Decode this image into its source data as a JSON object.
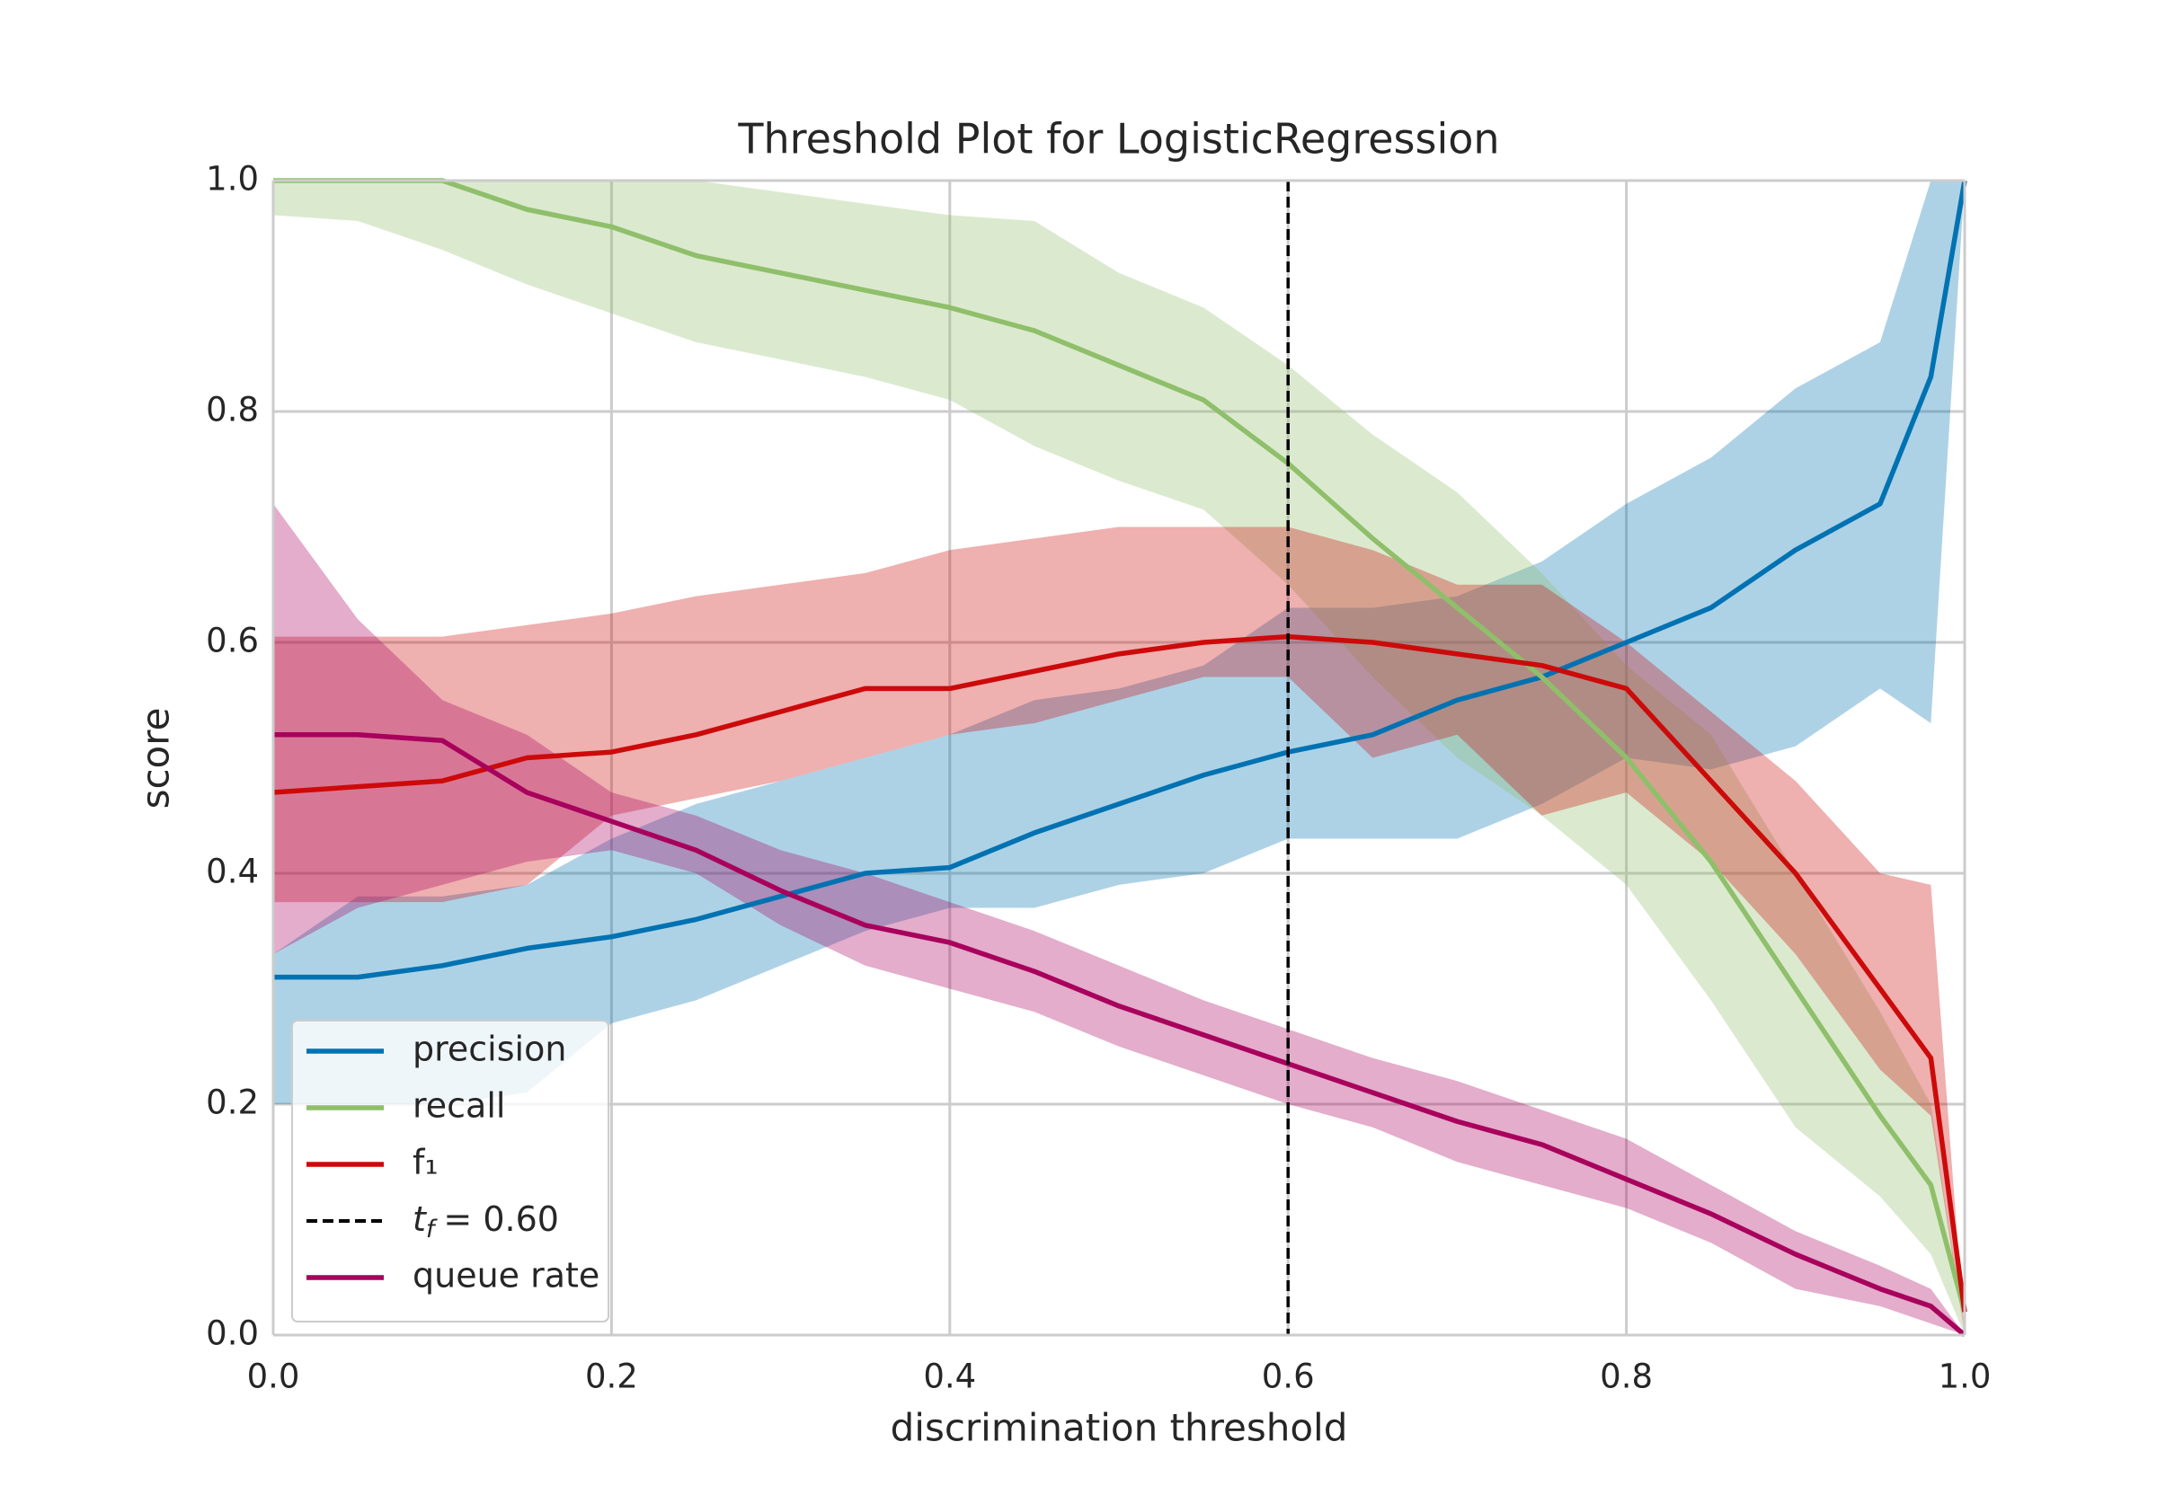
{
  "chart_data": {
    "type": "line",
    "title": "Threshold Plot for LogisticRegression",
    "x_label": "discrimination threshold",
    "y_label": "score",
    "xlim": [
      0,
      1.0
    ],
    "ylim": [
      0,
      1.0
    ],
    "xticks": [
      {
        "value": 0,
        "label": "0.0"
      },
      0.2,
      0.4,
      0.6,
      0.8,
      {
        "value": 1,
        "label": "1.0"
      }
    ],
    "yticks": [
      {
        "value": 0,
        "label": "0.0"
      },
      0.2,
      0.4,
      0.6,
      0.8,
      {
        "value": 1,
        "label": "1.0"
      }
    ],
    "grid": true,
    "legend": "lower left",
    "x": [
      0,
      0.05,
      0.1,
      0.15,
      0.2,
      0.25,
      0.3,
      0.35,
      0.4,
      0.45,
      0.5,
      0.55,
      0.6,
      0.65,
      0.7,
      0.75,
      0.8,
      0.85,
      0.9,
      0.95,
      0.98,
      1.0
    ],
    "series": [
      {
        "name": "precision",
        "color": "#0072b2",
        "values": [
          0.31,
          0.31,
          0.32,
          0.335,
          0.345,
          0.36,
          0.38,
          0.4,
          0.405,
          0.435,
          0.46,
          0.485,
          0.505,
          0.52,
          0.55,
          0.57,
          0.6,
          0.63,
          0.68,
          0.72,
          0.83,
          1.0
        ],
        "lower": [
          0.2,
          0.2,
          0.2,
          0.21,
          0.27,
          0.29,
          0.32,
          0.35,
          0.37,
          0.37,
          0.39,
          0.4,
          0.43,
          0.43,
          0.43,
          0.46,
          0.5,
          0.49,
          0.51,
          0.56,
          0.53,
          1.0
        ],
        "upper": [
          0.33,
          0.38,
          0.38,
          0.39,
          0.43,
          0.46,
          0.48,
          0.5,
          0.52,
          0.55,
          0.56,
          0.58,
          0.63,
          0.63,
          0.64,
          0.67,
          0.72,
          0.76,
          0.82,
          0.86,
          1.0,
          1.0
        ]
      },
      {
        "name": "recall",
        "color": "#8fbf6a",
        "values": [
          1.0,
          1.0,
          1.0,
          0.975,
          0.96,
          0.935,
          0.92,
          0.905,
          0.89,
          0.87,
          0.84,
          0.81,
          0.755,
          0.69,
          0.63,
          0.57,
          0.5,
          0.41,
          0.3,
          0.19,
          0.13,
          0.02
        ],
        "lower": [
          0.97,
          0.965,
          0.94,
          0.91,
          0.885,
          0.86,
          0.845,
          0.83,
          0.81,
          0.77,
          0.74,
          0.715,
          0.65,
          0.57,
          0.5,
          0.45,
          0.39,
          0.29,
          0.18,
          0.12,
          0.07,
          0.0
        ],
        "upper": [
          1.0,
          1.0,
          1.0,
          1.0,
          1.0,
          1.0,
          0.99,
          0.98,
          0.97,
          0.965,
          0.92,
          0.89,
          0.84,
          0.78,
          0.73,
          0.66,
          0.58,
          0.52,
          0.4,
          0.28,
          0.2,
          0.0
        ]
      },
      {
        "name": "f₁",
        "color": "#cc0a0a",
        "values": [
          0.47,
          0.475,
          0.48,
          0.5,
          0.505,
          0.52,
          0.54,
          0.56,
          0.56,
          0.575,
          0.59,
          0.6,
          0.605,
          0.6,
          0.59,
          0.58,
          0.56,
          0.48,
          0.4,
          0.3,
          0.24,
          0.02
        ],
        "lower": [
          0.375,
          0.375,
          0.375,
          0.39,
          0.45,
          0.465,
          0.48,
          0.5,
          0.52,
          0.53,
          0.55,
          0.57,
          0.57,
          0.5,
          0.52,
          0.45,
          0.47,
          0.41,
          0.33,
          0.23,
          0.19,
          0.0
        ],
        "upper": [
          0.605,
          0.605,
          0.605,
          0.615,
          0.625,
          0.64,
          0.65,
          0.66,
          0.68,
          0.69,
          0.7,
          0.7,
          0.7,
          0.68,
          0.65,
          0.65,
          0.6,
          0.54,
          0.48,
          0.4,
          0.39,
          0.0
        ]
      },
      {
        "name": "queue rate",
        "color": "#a8005c",
        "values": [
          0.52,
          0.52,
          0.515,
          0.47,
          0.445,
          0.42,
          0.385,
          0.355,
          0.34,
          0.315,
          0.285,
          0.26,
          0.235,
          0.21,
          0.185,
          0.165,
          0.135,
          0.105,
          0.07,
          0.04,
          0.025,
          0.0
        ],
        "lower": [
          0.33,
          0.37,
          0.39,
          0.41,
          0.42,
          0.4,
          0.355,
          0.32,
          0.3,
          0.28,
          0.25,
          0.225,
          0.2,
          0.18,
          0.15,
          0.13,
          0.11,
          0.08,
          0.04,
          0.025,
          0.01,
          0.0
        ],
        "upper": [
          0.72,
          0.62,
          0.55,
          0.52,
          0.47,
          0.45,
          0.42,
          0.4,
          0.375,
          0.35,
          0.32,
          0.29,
          0.265,
          0.24,
          0.22,
          0.195,
          0.17,
          0.13,
          0.09,
          0.06,
          0.04,
          0.0
        ]
      }
    ],
    "threshold": 0.6,
    "threshold_color": "#000000",
    "threshold_legend": [
      "t",
      "f",
      "= 0.60"
    ]
  }
}
